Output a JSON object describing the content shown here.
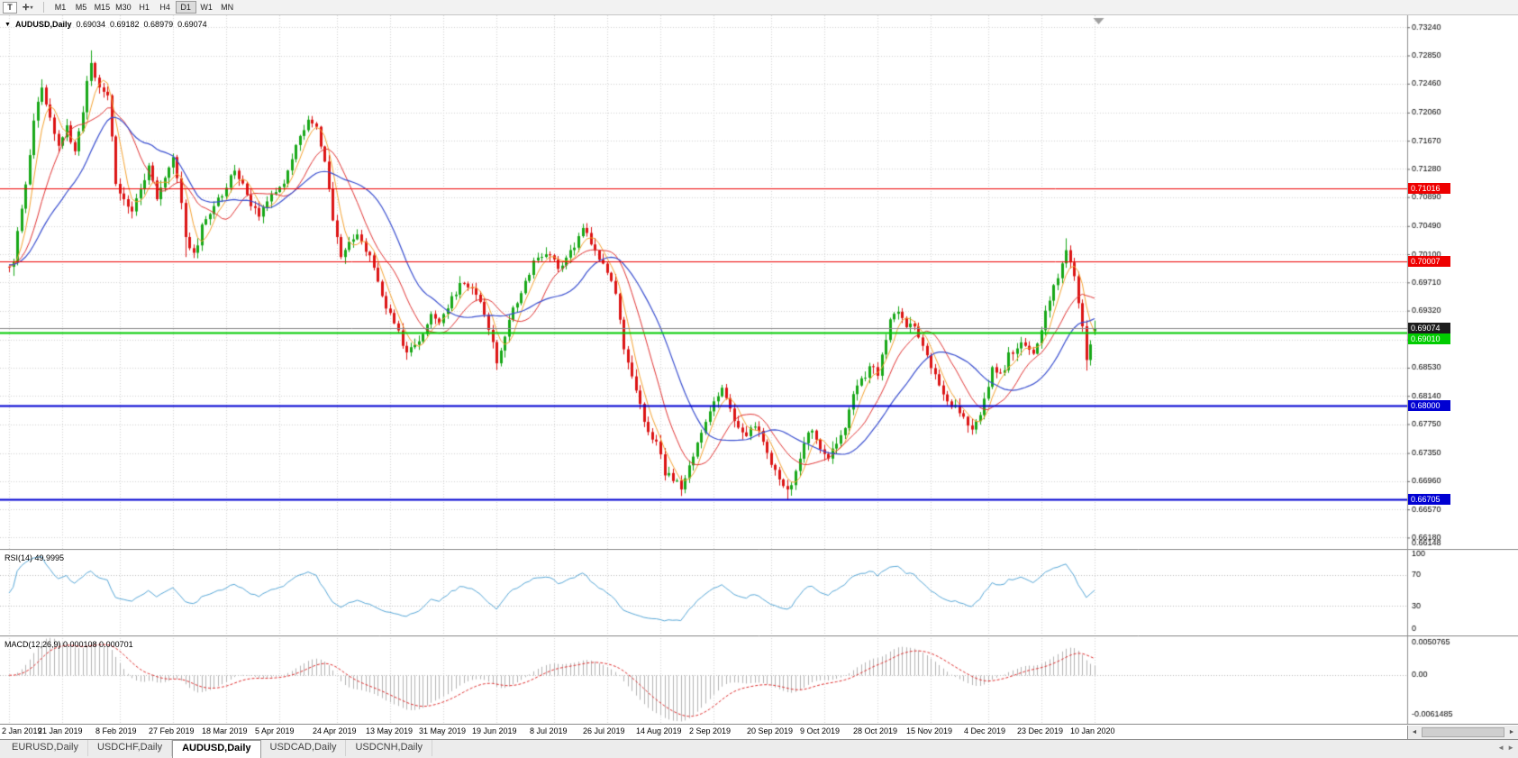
{
  "toolbar": {
    "chart_type_label": "T",
    "crosshair_glyph": "✛",
    "caret_glyph": "▾",
    "timeframes": [
      "M1",
      "M5",
      "M15",
      "M30",
      "H1",
      "H4",
      "D1",
      "W1",
      "MN"
    ],
    "active_timeframe": "D1"
  },
  "chart": {
    "header_arrow": "▼",
    "symbol_label": "AUDUSD,Daily",
    "ohlc": {
      "open": "0.69034",
      "high": "0.69182",
      "low": "0.68979",
      "close": "0.69074"
    },
    "price_axis_labels": [
      "0.73240",
      "0.72850",
      "0.72460",
      "0.72060",
      "0.71670",
      "0.71280",
      "0.70890",
      "0.70490",
      "0.70100",
      "0.69710",
      "0.69320",
      "0.68920",
      "0.68530",
      "0.68140",
      "0.67750",
      "0.67350",
      "0.66960",
      "0.66570",
      "0.66180"
    ],
    "price_axis_min_label": "0.66148",
    "current_price_tag": "0.69074",
    "hlines": [
      {
        "price": 0.71016,
        "label": "0.71016",
        "color": "#ee0000",
        "width": 1
      },
      {
        "price": 0.70007,
        "label": "0.70007",
        "color": "#ee0000",
        "width": 1
      },
      {
        "price": 0.6901,
        "label": "0.69010",
        "color": "#00cc00",
        "width": 2,
        "tag_dy": 7
      },
      {
        "price": 0.68,
        "label": "0.68000",
        "color": "#0000d2",
        "width": 2
      },
      {
        "price": 0.66705,
        "label": "0.66705",
        "color": "#0000d2",
        "width": 2
      }
    ],
    "date_labels": [
      "2 Jan 2019",
      "21 Jan 2019",
      "8 Feb 2019",
      "27 Feb 2019",
      "18 Mar 2019",
      "5 Apr 2019",
      "24 Apr 2019",
      "13 May 2019",
      "31 May 2019",
      "19 Jun 2019",
      "8 Jul 2019",
      "26 Jul 2019",
      "14 Aug 2019",
      "2 Sep 2019",
      "20 Sep 2019",
      "9 Oct 2019",
      "28 Oct 2019",
      "15 Nov 2019",
      "4 Dec 2019",
      "23 Dec 2019",
      "10 Jan 2020"
    ]
  },
  "indicators": {
    "rsi": {
      "label": "RSI(14) 49.9995",
      "value": 49.9995,
      "axis_labels": [
        "100",
        "70",
        "30",
        "0"
      ],
      "axis_values": [
        100,
        70,
        30,
        0
      ],
      "levels": [
        70,
        30
      ],
      "color": "#58a8d8"
    },
    "macd": {
      "label": "MACD(12,26,9) 0.000108 0.000701",
      "values": [
        0.000108,
        0.000701
      ],
      "axis_labels": [
        "0.0050765",
        "0.00",
        "-0.0061485"
      ],
      "axis_values": [
        0.0050765,
        0,
        -0.0061485
      ],
      "histogram_color": "#b4b4b4",
      "signal_color": "#e03030"
    }
  },
  "tabs": {
    "items": [
      "EURUSD,Daily",
      "USDCHF,Daily",
      "AUDUSD,Daily",
      "USDCAD,Daily",
      "USDCNH,Daily"
    ],
    "active": "AUDUSD,Daily"
  },
  "ui": {
    "scroll_left_glyph": "◄",
    "scroll_right_glyph": "►",
    "tab_nav_left": "◄",
    "tab_nav_right": "►"
  },
  "colors": {
    "bull": "#18a818",
    "bear": "#dc1414",
    "grid": "#d4d4d4",
    "axis_text": "#000000",
    "bid_line": "#888888",
    "tag_black": "#1c1c1c",
    "ma_fast": "#f5a332",
    "ma_mid": "#e23535",
    "ma_slow": "#3a4fd0"
  },
  "chart_data": {
    "type": "candlestick",
    "symbol": "AUDUSD",
    "timeframe": "Daily",
    "visible_bars": 266,
    "x_start": "2 Jan 2019",
    "x_end": "10 Jan 2020",
    "price_range_visible": [
      0.66148,
      0.7324
    ],
    "last_bar_ohlc": [
      0.69034,
      0.69182,
      0.68979,
      0.69074
    ],
    "close_path": [
      [
        0,
        0.6995
      ],
      [
        1,
        0.7005
      ],
      [
        3,
        0.7075
      ],
      [
        5,
        0.7145
      ],
      [
        6,
        0.719
      ],
      [
        8,
        0.724
      ],
      [
        10,
        0.7205
      ],
      [
        12,
        0.716
      ],
      [
        14,
        0.7185
      ],
      [
        16,
        0.7155
      ],
      [
        18,
        0.721
      ],
      [
        20,
        0.728
      ],
      [
        21,
        0.726
      ],
      [
        22,
        0.724
      ],
      [
        24,
        0.7225
      ],
      [
        26,
        0.711
      ],
      [
        28,
        0.7085
      ],
      [
        30,
        0.707
      ],
      [
        32,
        0.7105
      ],
      [
        34,
        0.713
      ],
      [
        36,
        0.709
      ],
      [
        38,
        0.7115
      ],
      [
        40,
        0.714
      ],
      [
        41,
        0.712
      ],
      [
        43,
        0.7035
      ],
      [
        45,
        0.7008
      ],
      [
        47,
        0.7045
      ],
      [
        49,
        0.707
      ],
      [
        51,
        0.7085
      ],
      [
        53,
        0.7105
      ],
      [
        55,
        0.713
      ],
      [
        57,
        0.711
      ],
      [
        59,
        0.708
      ],
      [
        61,
        0.7068
      ],
      [
        63,
        0.7085
      ],
      [
        65,
        0.7098
      ],
      [
        67,
        0.7108
      ],
      [
        69,
        0.714
      ],
      [
        71,
        0.7175
      ],
      [
        73,
        0.7195
      ],
      [
        75,
        0.718
      ],
      [
        77,
        0.714
      ],
      [
        79,
        0.706
      ],
      [
        81,
        0.7002
      ],
      [
        83,
        0.7022
      ],
      [
        85,
        0.7038
      ],
      [
        87,
        0.7015
      ],
      [
        89,
        0.6992
      ],
      [
        91,
        0.6952
      ],
      [
        93,
        0.693
      ],
      [
        95,
        0.69
      ],
      [
        97,
        0.6872
      ],
      [
        99,
        0.688
      ],
      [
        101,
        0.6905
      ],
      [
        103,
        0.6928
      ],
      [
        105,
        0.6918
      ],
      [
        107,
        0.6938
      ],
      [
        109,
        0.6958
      ],
      [
        111,
        0.6972
      ],
      [
        113,
        0.6968
      ],
      [
        115,
        0.694
      ],
      [
        117,
        0.6908
      ],
      [
        119,
        0.6858
      ],
      [
        120,
        0.6875
      ],
      [
        122,
        0.692
      ],
      [
        124,
        0.6945
      ],
      [
        126,
        0.6975
      ],
      [
        128,
        0.6998
      ],
      [
        130,
        0.7012
      ],
      [
        132,
        0.7008
      ],
      [
        134,
        0.699
      ],
      [
        136,
        0.7
      ],
      [
        138,
        0.702
      ],
      [
        140,
        0.704
      ],
      [
        142,
        0.7028
      ],
      [
        144,
        0.7008
      ],
      [
        146,
        0.6985
      ],
      [
        148,
        0.695
      ],
      [
        150,
        0.688
      ],
      [
        152,
        0.6838
      ],
      [
        154,
        0.68
      ],
      [
        156,
        0.6768
      ],
      [
        158,
        0.6745
      ],
      [
        160,
        0.671
      ],
      [
        162,
        0.6695
      ],
      [
        164,
        0.6688
      ],
      [
        166,
        0.672
      ],
      [
        168,
        0.675
      ],
      [
        170,
        0.6775
      ],
      [
        172,
        0.68
      ],
      [
        174,
        0.682
      ],
      [
        176,
        0.68
      ],
      [
        178,
        0.677
      ],
      [
        180,
        0.6758
      ],
      [
        182,
        0.6775
      ],
      [
        184,
        0.6745
      ],
      [
        186,
        0.672
      ],
      [
        188,
        0.67
      ],
      [
        190,
        0.668
      ],
      [
        192,
        0.6705
      ],
      [
        194,
        0.6745
      ],
      [
        196,
        0.677
      ],
      [
        198,
        0.6745
      ],
      [
        200,
        0.6725
      ],
      [
        202,
        0.6745
      ],
      [
        204,
        0.677
      ],
      [
        206,
        0.681
      ],
      [
        208,
        0.6835
      ],
      [
        210,
        0.685
      ],
      [
        212,
        0.6845
      ],
      [
        213,
        0.687
      ],
      [
        215,
        0.6915
      ],
      [
        217,
        0.693
      ],
      [
        219,
        0.691
      ],
      [
        221,
        0.6915
      ],
      [
        223,
        0.6885
      ],
      [
        225,
        0.685
      ],
      [
        227,
        0.6828
      ],
      [
        229,
        0.6812
      ],
      [
        231,
        0.6795
      ],
      [
        233,
        0.678
      ],
      [
        235,
        0.6772
      ],
      [
        237,
        0.679
      ],
      [
        238,
        0.6815
      ],
      [
        240,
        0.685
      ],
      [
        242,
        0.6842
      ],
      [
        244,
        0.6868
      ],
      [
        246,
        0.6885
      ],
      [
        248,
        0.6882
      ],
      [
        250,
        0.6878
      ],
      [
        252,
        0.69
      ],
      [
        253,
        0.6935
      ],
      [
        255,
        0.6965
      ],
      [
        257,
        0.7
      ],
      [
        258,
        0.7022
      ],
      [
        259,
        0.7
      ],
      [
        260,
        0.6975
      ],
      [
        261,
        0.6945
      ],
      [
        262,
        0.6905
      ],
      [
        263,
        0.6862
      ],
      [
        264,
        0.6885
      ],
      [
        265,
        0.6907
      ]
    ],
    "spikes": [
      {
        "i": 1,
        "low": 0.698
      },
      {
        "i": 8,
        "high": 0.7252
      },
      {
        "i": 20,
        "high": 0.7292
      },
      {
        "i": 43,
        "low": 0.7006
      },
      {
        "i": 97,
        "low": 0.6864
      },
      {
        "i": 119,
        "low": 0.685
      },
      {
        "i": 140,
        "high": 0.7049
      },
      {
        "i": 164,
        "low": 0.6676
      },
      {
        "i": 190,
        "low": 0.6671
      },
      {
        "i": 217,
        "high": 0.6938
      },
      {
        "i": 258,
        "high": 0.7032
      },
      {
        "i": 263,
        "low": 0.6849
      }
    ],
    "overlays": [
      {
        "name": "fast-ma",
        "type": "sma",
        "period": 5,
        "color": "#f5a332"
      },
      {
        "name": "mid-ma",
        "type": "sma",
        "period": 12,
        "color": "#e23535"
      },
      {
        "name": "slow-ma",
        "type": "sma",
        "period": 22,
        "color": "#3a4fd0"
      }
    ],
    "rsi_period": 14,
    "macd_params": [
      12,
      26,
      9
    ]
  }
}
